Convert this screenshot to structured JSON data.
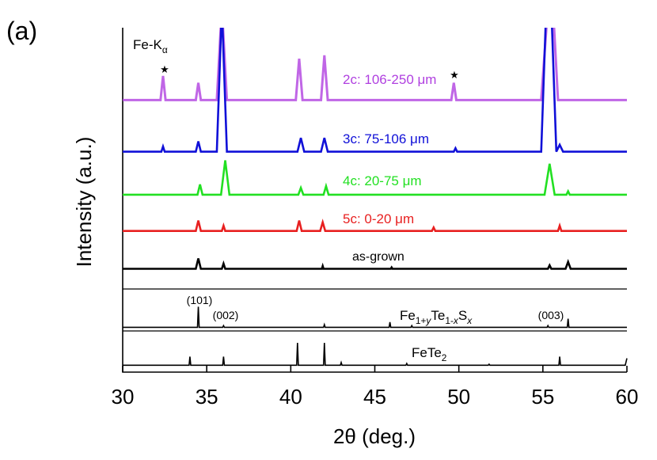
{
  "chart_data": {
    "type": "line",
    "panel_label": "(a)",
    "xlabel": "2θ (deg.)",
    "ylabel": "Intensity (a.u.)",
    "annotation_parts": [
      {
        "text": "Fe-K"
      },
      {
        "text": "α",
        "sub": true
      }
    ],
    "star_labels": [
      "★",
      "★"
    ],
    "peak_labels": [
      "(101)",
      "(002)",
      "(003)"
    ],
    "xlim": [
      30,
      60
    ],
    "xticks": [
      30,
      35,
      40,
      45,
      50,
      55,
      60
    ],
    "ylim": [
      0,
      100
    ],
    "series": [
      {
        "name": "2c: 106-250 μm",
        "color": "#b040e0",
        "x": [
          30,
          32.25,
          32.4,
          32.55,
          34.35,
          34.5,
          34.65,
          35.6,
          35.9,
          36.2,
          40.3,
          40.5,
          40.7,
          41.8,
          42.0,
          42.2,
          49.55,
          49.7,
          49.85,
          54.9,
          55.3,
          55.6,
          55.9,
          60
        ],
        "values": [
          79,
          79,
          86,
          79,
          79,
          84,
          79,
          79,
          106,
          79,
          79,
          91,
          79,
          79,
          92,
          79,
          79,
          84,
          79,
          79,
          106,
          106,
          79,
          79
        ]
      },
      {
        "name": "3c: 75-106 μm",
        "color": "#1010d8",
        "x": [
          30,
          32.3,
          32.4,
          32.5,
          34.35,
          34.5,
          34.65,
          35.6,
          35.9,
          36.2,
          40.4,
          40.6,
          40.8,
          41.8,
          42.0,
          42.2,
          49.7,
          49.8,
          49.9,
          54.9,
          55.2,
          55.5,
          55.8,
          56.0,
          56.2,
          60
        ],
        "values": [
          64,
          64,
          65.5,
          64,
          64,
          67,
          64,
          64,
          106,
          64,
          64,
          68,
          64,
          64,
          68,
          64,
          64,
          65,
          64,
          64,
          106,
          106,
          64,
          66,
          64,
          64
        ]
      },
      {
        "name": "4c: 20-75 μm",
        "color": "#22e022",
        "x": [
          30,
          34.45,
          34.6,
          34.75,
          35.85,
          36.1,
          36.35,
          40.45,
          40.6,
          40.75,
          41.95,
          42.1,
          42.25,
          55.1,
          55.4,
          55.7,
          56.4,
          56.5,
          56.6,
          60
        ],
        "values": [
          51.5,
          51.5,
          54.5,
          51.5,
          51.5,
          61.5,
          51.5,
          51.5,
          53.5,
          51.5,
          51.5,
          54,
          51.5,
          51.5,
          60.5,
          51.5,
          51.5,
          52.5,
          51.5,
          51.5
        ]
      },
      {
        "name": "5c: 0-20 μm",
        "color": "#e82020",
        "x": [
          30,
          34.35,
          34.5,
          34.65,
          35.9,
          36.0,
          36.1,
          40.35,
          40.5,
          40.65,
          41.75,
          41.9,
          42.05,
          48.4,
          48.5,
          48.6,
          55.9,
          56.0,
          56.1,
          60
        ],
        "values": [
          41,
          41,
          44,
          41,
          41,
          42.5,
          41,
          41,
          44,
          41,
          41,
          43.5,
          41,
          41,
          42,
          41,
          41,
          42.5,
          41,
          41
        ]
      },
      {
        "name": "as-grown",
        "color": "#000000",
        "x": [
          30,
          34.35,
          34.5,
          34.65,
          35.9,
          36.0,
          36.1,
          41.85,
          41.9,
          41.95,
          45.95,
          46.0,
          46.05,
          55.3,
          55.4,
          55.5,
          56.35,
          56.5,
          56.65,
          60
        ],
        "values": [
          30,
          30,
          33,
          30,
          30,
          31.5,
          30,
          30,
          30.8,
          30,
          30,
          30.4,
          30,
          30,
          31,
          30,
          30,
          32,
          30,
          30
        ]
      },
      {
        "name_parts": [
          {
            "text": "Fe"
          },
          {
            "text": "1+",
            "sub": true
          },
          {
            "text": "y",
            "sub": true,
            "italic": true
          },
          {
            "text": "Te"
          },
          {
            "text": "1-",
            "sub": true
          },
          {
            "text": "x",
            "sub": true,
            "italic": true
          },
          {
            "text": "S"
          },
          {
            "text": "x",
            "sub": true,
            "italic": true
          }
        ],
        "color": "#000000",
        "x": [
          30,
          34.45,
          34.5,
          34.55,
          35.95,
          36.0,
          36.05,
          41.95,
          42.0,
          42.05,
          45.85,
          45.9,
          45.95,
          47.15,
          47.2,
          47.25,
          55.25,
          55.3,
          55.35,
          56.45,
          56.5,
          56.55,
          60
        ],
        "values": [
          13,
          13,
          19,
          13,
          13,
          13.5,
          13,
          13,
          13.8,
          13,
          13,
          14.5,
          13,
          13,
          13.5,
          13,
          13,
          13.5,
          13,
          13,
          15.5,
          13,
          13
        ]
      },
      {
        "name_parts": [
          {
            "text": "FeTe"
          },
          {
            "text": "2",
            "sub": true
          }
        ],
        "color": "#000000",
        "x": [
          30,
          33.95,
          34.0,
          34.05,
          35.95,
          36.0,
          36.05,
          40.35,
          40.4,
          40.45,
          41.95,
          42.0,
          42.05,
          42.95,
          43.0,
          43.05,
          46.85,
          46.9,
          46.95,
          51.75,
          51.8,
          51.85,
          55.95,
          56.0,
          56.05,
          59.9,
          60
        ],
        "values": [
          2,
          2,
          4.5,
          2,
          2,
          4.5,
          2,
          2,
          8.5,
          2,
          2,
          8.5,
          2,
          2,
          2.8,
          2,
          2,
          2.5,
          2,
          2,
          2.3,
          2,
          2,
          4.5,
          2,
          2,
          4
        ]
      }
    ]
  }
}
